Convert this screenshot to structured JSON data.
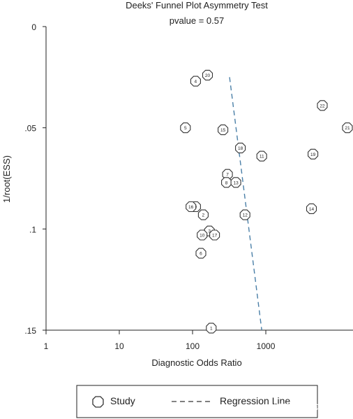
{
  "chart_data": {
    "type": "scatter",
    "title": "Deeks' Funnel Plot Asymmetry Test",
    "subtitle": "pvalue =   0.57",
    "xlabel": "Diagnostic Odds Ratio",
    "ylabel": "1/root(ESS)",
    "x_scale": "log",
    "x_ticks": [
      "1",
      "10",
      "100",
      "1000"
    ],
    "y_ticks": [
      "0",
      ".05",
      ".1",
      ".15"
    ],
    "y_reversed": true,
    "xlim": [
      1,
      13000
    ],
    "ylim": [
      0,
      0.15
    ],
    "series": [
      {
        "name": "Study",
        "points": [
          {
            "label": "1",
            "x": 180,
            "y": 0.149
          },
          {
            "label": "2",
            "x": 140,
            "y": 0.093
          },
          {
            "label": "3",
            "x": 170,
            "y": 0.101
          },
          {
            "label": "4",
            "x": 110,
            "y": 0.027
          },
          {
            "label": "5",
            "x": 80,
            "y": 0.05
          },
          {
            "label": "6",
            "x": 130,
            "y": 0.112
          },
          {
            "label": "7",
            "x": 300,
            "y": 0.073
          },
          {
            "label": "8",
            "x": 290,
            "y": 0.077
          },
          {
            "label": "9",
            "x": 110,
            "y": 0.089
          },
          {
            "label": "10",
            "x": 135,
            "y": 0.103
          },
          {
            "label": "11",
            "x": 880,
            "y": 0.064
          },
          {
            "label": "12",
            "x": 520,
            "y": 0.093
          },
          {
            "label": "13",
            "x": 390,
            "y": 0.077
          },
          {
            "label": "14",
            "x": 4200,
            "y": 0.09
          },
          {
            "label": "15",
            "x": 260,
            "y": 0.051
          },
          {
            "label": "16",
            "x": 95,
            "y": 0.089
          },
          {
            "label": "17",
            "x": 200,
            "y": 0.103
          },
          {
            "label": "18",
            "x": 450,
            "y": 0.06
          },
          {
            "label": "19",
            "x": 4400,
            "y": 0.063
          },
          {
            "label": "20",
            "x": 160,
            "y": 0.024
          },
          {
            "label": "21",
            "x": 13000,
            "y": 0.05
          },
          {
            "label": "22",
            "x": 5900,
            "y": 0.039
          }
        ]
      },
      {
        "name": "Regression Line",
        "line": [
          {
            "x": 320,
            "y": 0.025
          },
          {
            "x": 880,
            "y": 0.15
          }
        ]
      }
    ],
    "legend": {
      "placement": "bottom",
      "items": [
        {
          "label": "Study",
          "marker": "octagon"
        },
        {
          "label": "Regression Line",
          "marker": "dashed-line"
        }
      ]
    },
    "colors": {
      "line": "#4a7fa7",
      "marker": "#333333"
    },
    "grid": false
  },
  "watermark": "搜狐号@采部汇队长"
}
